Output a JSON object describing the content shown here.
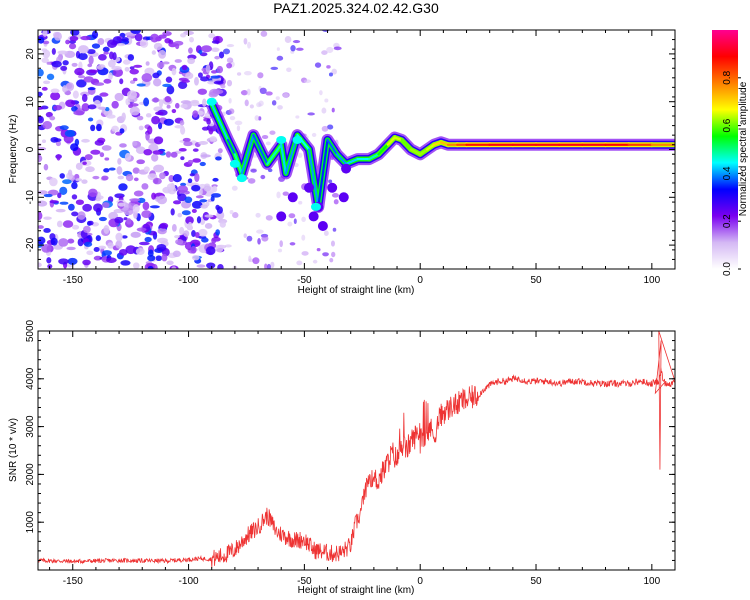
{
  "title": "PAZ1.2025.324.02.42.G30",
  "chart_data": [
    {
      "type": "heatmap",
      "name": "spectrogram",
      "xlabel": "Height of straight line (km)",
      "ylabel": "Frequency (Hz)",
      "xlim": [
        -165,
        110
      ],
      "ylim": [
        -25,
        25
      ],
      "xticks": [
        "-150",
        "-100",
        "-50",
        "0",
        "50",
        "100"
      ],
      "xtick_values": [
        -150,
        -100,
        -50,
        0,
        50,
        100
      ],
      "yticks": [
        "20",
        "10",
        "0",
        "-10",
        "-20"
      ],
      "ytick_values": [
        20,
        10,
        0,
        -10,
        -20
      ],
      "ridge": [
        {
          "x": -90,
          "f": 9.5,
          "a": 0.55
        },
        {
          "x": -83,
          "f": 2,
          "a": 0.3
        },
        {
          "x": -80,
          "f": -1,
          "a": 0.45
        },
        {
          "x": -77,
          "f": -5,
          "a": 0.5
        },
        {
          "x": -72,
          "f": 3,
          "a": 0.3
        },
        {
          "x": -66,
          "f": -3,
          "a": 0.45
        },
        {
          "x": -60,
          "f": 1,
          "a": 0.5
        },
        {
          "x": -58,
          "f": -5,
          "a": 0.35
        },
        {
          "x": -53,
          "f": 3,
          "a": 0.45
        },
        {
          "x": -48,
          "f": 0,
          "a": 0.45
        },
        {
          "x": -44,
          "f": -12,
          "a": 0.35
        },
        {
          "x": -40,
          "f": 2,
          "a": 0.35
        },
        {
          "x": -36,
          "f": -1,
          "a": 0.4
        },
        {
          "x": -32,
          "f": -3,
          "a": 0.4
        },
        {
          "x": -27,
          "f": -2,
          "a": 0.45
        },
        {
          "x": -22,
          "f": -2,
          "a": 0.45
        },
        {
          "x": -18,
          "f": -1,
          "a": 0.5
        },
        {
          "x": -14,
          "f": 1,
          "a": 0.6
        },
        {
          "x": -11,
          "f": 2.5,
          "a": 0.7
        },
        {
          "x": -8,
          "f": 2,
          "a": 0.6
        },
        {
          "x": -4,
          "f": 0,
          "a": 0.6
        },
        {
          "x": 0,
          "f": -1,
          "a": 0.65
        },
        {
          "x": 3,
          "f": 0,
          "a": 0.6
        },
        {
          "x": 6,
          "f": 1,
          "a": 0.7
        },
        {
          "x": 9,
          "f": 1.5,
          "a": 0.7
        },
        {
          "x": 12,
          "f": 1,
          "a": 0.75
        },
        {
          "x": 16,
          "f": 1,
          "a": 0.8
        },
        {
          "x": 20,
          "f": 1,
          "a": 0.85
        },
        {
          "x": 30,
          "f": 1,
          "a": 0.9
        },
        {
          "x": 40,
          "f": 1,
          "a": 0.9
        },
        {
          "x": 50,
          "f": 1,
          "a": 0.9
        },
        {
          "x": 60,
          "f": 1,
          "a": 0.9
        },
        {
          "x": 70,
          "f": 1,
          "a": 0.9
        },
        {
          "x": 80,
          "f": 1,
          "a": 0.9
        },
        {
          "x": 90,
          "f": 1,
          "a": 0.88
        },
        {
          "x": 100,
          "f": 1,
          "a": 0.8
        },
        {
          "x": 110,
          "f": 1,
          "a": 0.75
        }
      ],
      "colorbar": {
        "label": "Normalized spectral amplitude",
        "range": [
          0,
          1
        ],
        "ticks": [
          "0.0",
          "0.2",
          "0.4",
          "0.6",
          "0.8"
        ],
        "tick_values": [
          0,
          0.2,
          0.4,
          0.6,
          0.8
        ],
        "colors": [
          "#ffffff",
          "#d4b8f4",
          "#7a00f0",
          "#0000ff",
          "#00ffff",
          "#00ff00",
          "#ffff00",
          "#ff7f00",
          "#ff0000",
          "#ff0090"
        ]
      }
    },
    {
      "type": "line",
      "name": "snr",
      "xlabel": "Height of straight line (km)",
      "ylabel": "SNR (10 * v/v)",
      "xlim": [
        -165,
        110
      ],
      "ylim": [
        0,
        5000
      ],
      "xticks": [
        "-150",
        "-100",
        "-50",
        "0",
        "50",
        "100"
      ],
      "xtick_values": [
        -150,
        -100,
        -50,
        0,
        50,
        100
      ],
      "yticks": [
        "1000",
        "2000",
        "3000",
        "4000",
        "5000"
      ],
      "ytick_values": [
        1000,
        2000,
        3000,
        4000,
        5000
      ],
      "color": "#ee3333",
      "series": [
        {
          "name": "SNR",
          "x": [
            -165,
            -150,
            -130,
            -110,
            -100,
            -95,
            -90,
            -85,
            -80,
            -75,
            -70,
            -66,
            -62,
            -58,
            -54,
            -50,
            -46,
            -42,
            -38,
            -34,
            -30,
            -28,
            -26,
            -24,
            -22,
            -20,
            -18,
            -16,
            -14,
            -12,
            -10,
            -8,
            -6,
            -4,
            -2,
            0,
            2,
            4,
            6,
            8,
            10,
            12,
            14,
            16,
            18,
            20,
            22,
            25,
            28,
            31,
            34,
            37,
            40,
            43,
            46,
            50,
            55,
            60,
            65,
            70,
            75,
            80,
            85,
            90,
            95,
            100,
            102,
            103,
            104,
            105,
            106,
            108,
            110
          ],
          "y": [
            200,
            180,
            200,
            190,
            220,
            240,
            230,
            300,
            420,
            700,
            900,
            1150,
            800,
            700,
            620,
            640,
            420,
            380,
            340,
            360,
            520,
            950,
            1150,
            1600,
            1950,
            1880,
            1900,
            2050,
            2250,
            2450,
            2300,
            2650,
            2500,
            2700,
            2800,
            2950,
            2650,
            3000,
            2800,
            3150,
            3300,
            3350,
            3450,
            3450,
            3550,
            3550,
            3600,
            3650,
            3800,
            3900,
            3950,
            3950,
            4000,
            4000,
            3950,
            3950,
            3950,
            3900,
            3950,
            3950,
            3900,
            3900,
            3900,
            3900,
            3950,
            3900,
            3950,
            3900,
            4200,
            3950,
            3900,
            3900,
            3950
          ]
        }
      ],
      "spikes": [
        {
          "x": 103,
          "y": 5000
        },
        {
          "x": 103.5,
          "y": 2100
        },
        {
          "x": 104,
          "y": 4800
        },
        {
          "x": 101.5,
          "y": 3700
        }
      ]
    }
  ]
}
